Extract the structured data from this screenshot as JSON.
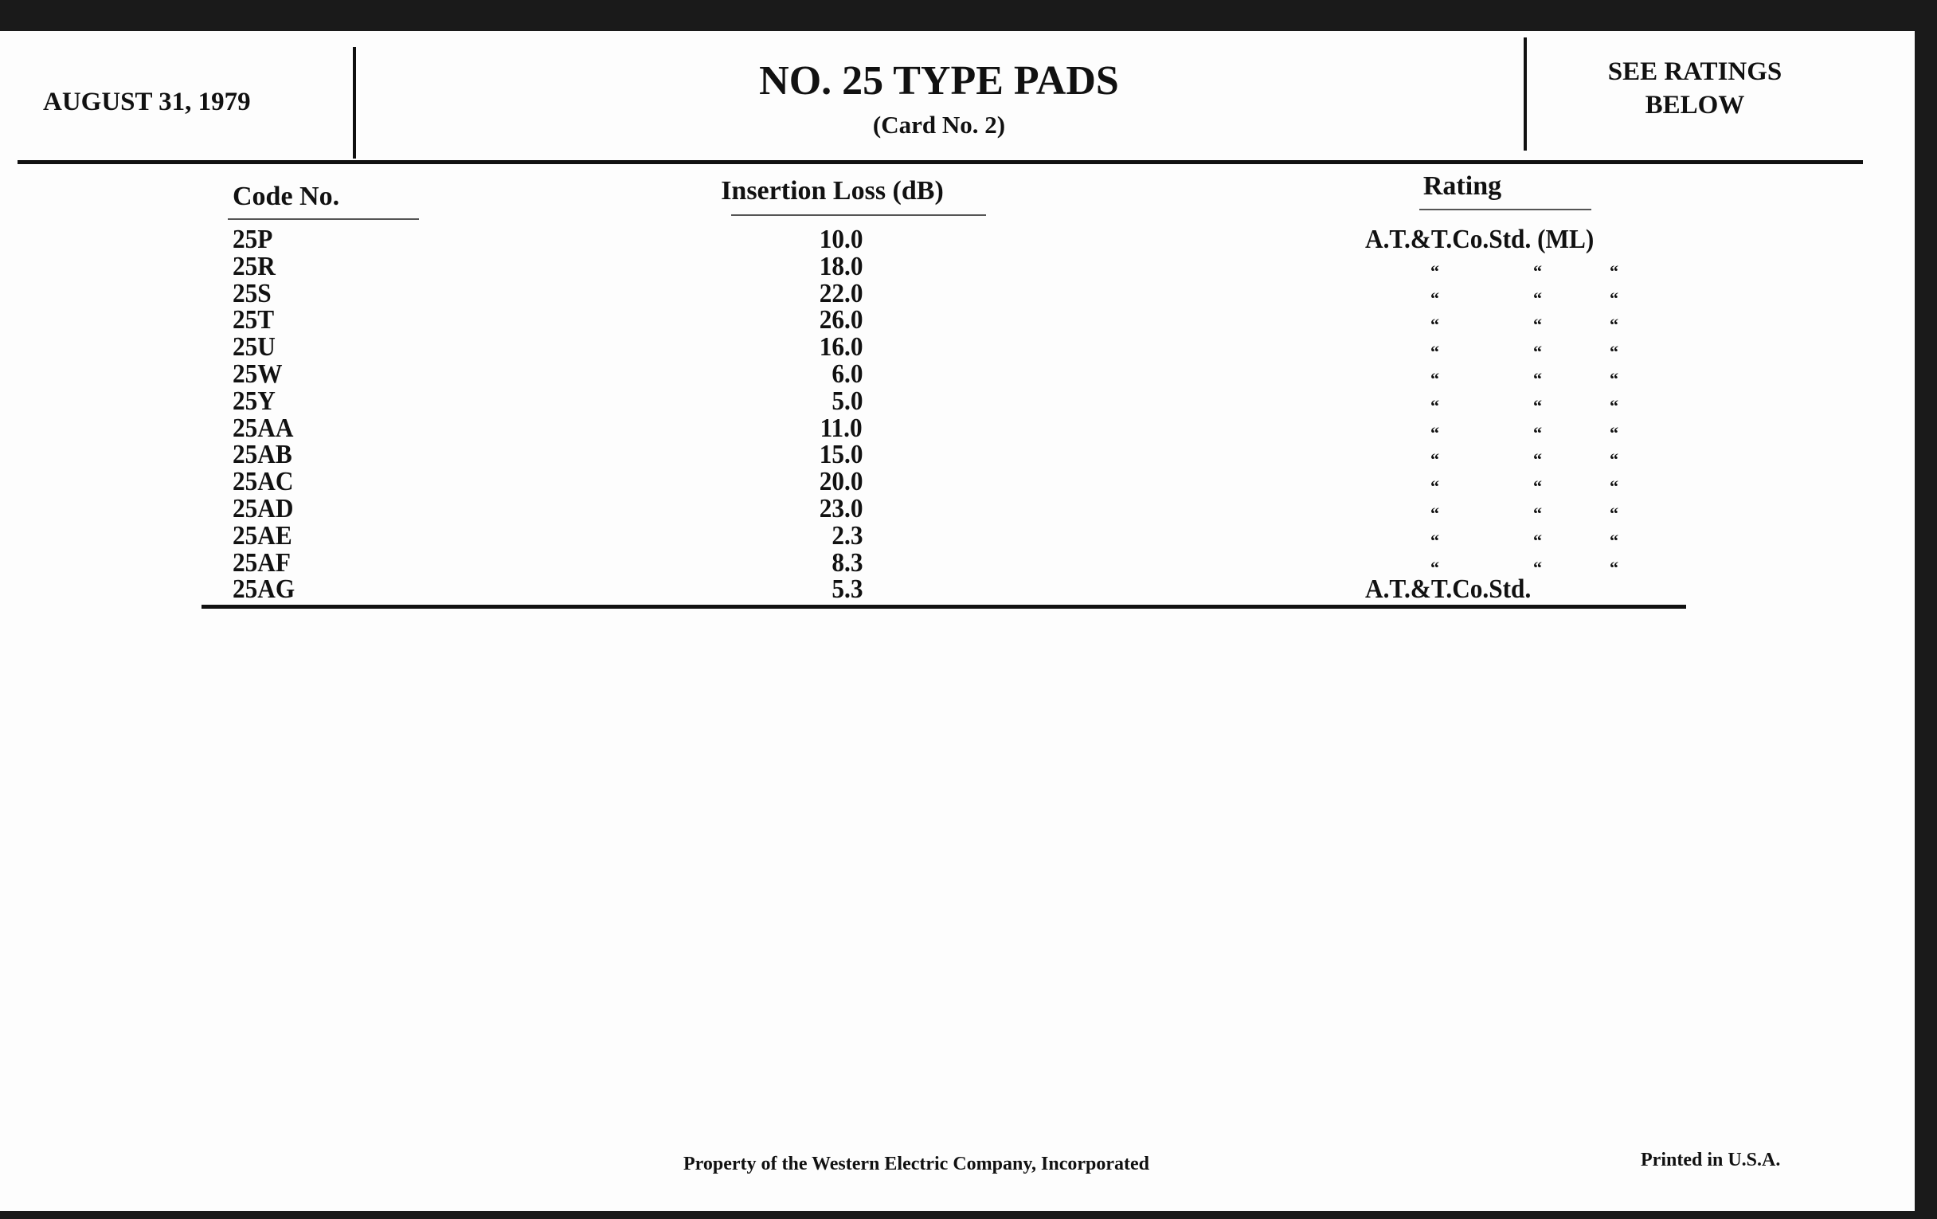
{
  "header": {
    "date": "AUGUST 31, 1979",
    "title": "NO. 25 TYPE PADS",
    "subtitle": "(Card No. 2)",
    "ratings_note_line1": "SEE RATINGS",
    "ratings_note_line2": "BELOW"
  },
  "table": {
    "columns": [
      "Code No.",
      "Insertion Loss (dB)",
      "Rating"
    ],
    "ditto_mark": "“",
    "rows": [
      {
        "code": "25P",
        "loss": "10.0",
        "rating": "A.T.&T.Co.Std. (ML)",
        "ditto": false
      },
      {
        "code": "25R",
        "loss": "18.0",
        "rating": "",
        "ditto": true
      },
      {
        "code": "25S",
        "loss": "22.0",
        "rating": "",
        "ditto": true
      },
      {
        "code": "25T",
        "loss": "26.0",
        "rating": "",
        "ditto": true
      },
      {
        "code": "25U",
        "loss": "16.0",
        "rating": "",
        "ditto": true
      },
      {
        "code": "25W",
        "loss": "6.0",
        "rating": "",
        "ditto": true
      },
      {
        "code": "25Y",
        "loss": "5.0",
        "rating": "",
        "ditto": true
      },
      {
        "code": "25AA",
        "loss": "11.0",
        "rating": "",
        "ditto": true
      },
      {
        "code": "25AB",
        "loss": "15.0",
        "rating": "",
        "ditto": true
      },
      {
        "code": "25AC",
        "loss": "20.0",
        "rating": "",
        "ditto": true
      },
      {
        "code": "25AD",
        "loss": "23.0",
        "rating": "",
        "ditto": true
      },
      {
        "code": "25AE",
        "loss": "2.3",
        "rating": "",
        "ditto": true
      },
      {
        "code": "25AF",
        "loss": "8.3",
        "rating": "",
        "ditto": true
      },
      {
        "code": "25AG",
        "loss": "5.3",
        "rating": "A.T.&T.Co.Std.",
        "ditto": false
      }
    ]
  },
  "footer": {
    "property": "Property of the Western Electric Company, Incorporated",
    "printed": "Printed in U.S.A."
  }
}
